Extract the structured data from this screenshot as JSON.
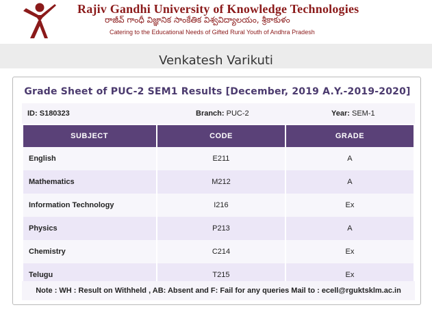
{
  "header": {
    "university_name": "Rajiv Gandhi University of Knowledge Technologies",
    "telugu_name": "రాజీవ్ గాంధీ విజ్ఞానిక సాంకేతిక విశ్వవిద్యాలయం, శ్రీకాకుళం",
    "tagline": "Catering to the Educational Needs of Gifted Rural Youth of Andhra Pradesh",
    "logo_icon": "rgukt-figure-logo",
    "brand_color": "#8b1a1a"
  },
  "student": {
    "name": "Venkatesh Varikuti"
  },
  "grade_sheet": {
    "title": "Grade Sheet of PUC-2 SEM1 Results [December, 2019 A.Y.-2019-2020]",
    "id_label": "ID:",
    "id_value": "S180323",
    "branch_label": "Branch:",
    "branch_value": "PUC-2",
    "year_label": "Year:",
    "year_value": "SEM-1",
    "columns": [
      "SUBJECT",
      "CODE",
      "GRADE"
    ],
    "rows": [
      {
        "subject": "English",
        "code": "E211",
        "grade": "A"
      },
      {
        "subject": "Mathematics",
        "code": "M212",
        "grade": "A"
      },
      {
        "subject": "Information Technology",
        "code": "I216",
        "grade": "Ex"
      },
      {
        "subject": "Physics",
        "code": "P213",
        "grade": "A"
      },
      {
        "subject": "Chemistry",
        "code": "C214",
        "grade": "Ex"
      },
      {
        "subject": "Telugu",
        "code": "T215",
        "grade": "Ex"
      }
    ],
    "note": "Note : WH : Result on Withheld , AB: Absent and F: Fail for any queries Mail to : ecell@rguktsklm.ac.in",
    "header_color": "#5a4178"
  }
}
